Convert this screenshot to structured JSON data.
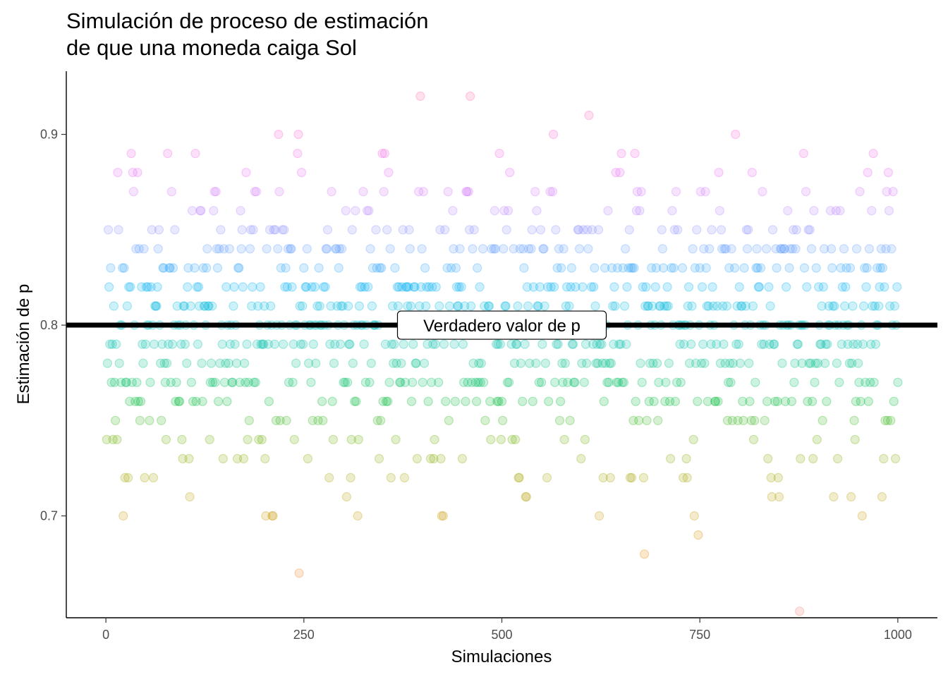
{
  "chart_data": {
    "type": "scatter",
    "title": "Simulación de proceso de estimación\nde que una moneda caiga Sol",
    "xlabel": "Simulaciones",
    "ylabel": "Estimación de p",
    "xlim": [
      -50,
      1050
    ],
    "ylim": [
      0.6466,
      0.9331
    ],
    "x_ticks": [
      0,
      250,
      500,
      750,
      1000
    ],
    "x_tick_labels": [
      "0",
      "250",
      "500",
      "750",
      "1000"
    ],
    "y_ticks": [
      0.7,
      0.8,
      0.9
    ],
    "y_tick_labels": [
      "0.7",
      "0.8",
      "0.9"
    ],
    "grid": false,
    "legend": "none",
    "point_alpha": 0.2,
    "n_points": 1000,
    "reference_line": {
      "y": 0.8,
      "color": "#000000"
    },
    "annotation": {
      "text": "Verdadero valor de p",
      "x": 500,
      "y": 0.8
    },
    "color_scale": [
      {
        "y": 0.65,
        "color": "#F8766D"
      },
      {
        "y": 0.68,
        "color": "#E58700"
      },
      {
        "y": 0.7,
        "color": "#C99800"
      },
      {
        "y": 0.72,
        "color": "#A3A500"
      },
      {
        "y": 0.74,
        "color": "#6BB100"
      },
      {
        "y": 0.76,
        "color": "#00BA38"
      },
      {
        "y": 0.78,
        "color": "#00C08B"
      },
      {
        "y": 0.8,
        "color": "#00BFC4"
      },
      {
        "y": 0.82,
        "color": "#00B0F6"
      },
      {
        "y": 0.84,
        "color": "#619CFF"
      },
      {
        "y": 0.86,
        "color": "#B983FF"
      },
      {
        "y": 0.88,
        "color": "#E76BF3"
      },
      {
        "y": 0.9,
        "color": "#FD61D1"
      },
      {
        "y": 0.92,
        "color": "#FF67A4"
      }
    ],
    "outlier_points": [
      {
        "x": 22,
        "y": 0.7
      },
      {
        "x": 244,
        "y": 0.67
      },
      {
        "x": 426,
        "y": 0.7
      },
      {
        "x": 680,
        "y": 0.68
      },
      {
        "x": 748,
        "y": 0.69
      },
      {
        "x": 876,
        "y": 0.65
      },
      {
        "x": 397,
        "y": 0.92
      },
      {
        "x": 460,
        "y": 0.92
      },
      {
        "x": 610,
        "y": 0.91
      },
      {
        "x": 218,
        "y": 0.9
      },
      {
        "x": 243,
        "y": 0.9
      },
      {
        "x": 565,
        "y": 0.9
      },
      {
        "x": 795,
        "y": 0.9
      }
    ]
  }
}
